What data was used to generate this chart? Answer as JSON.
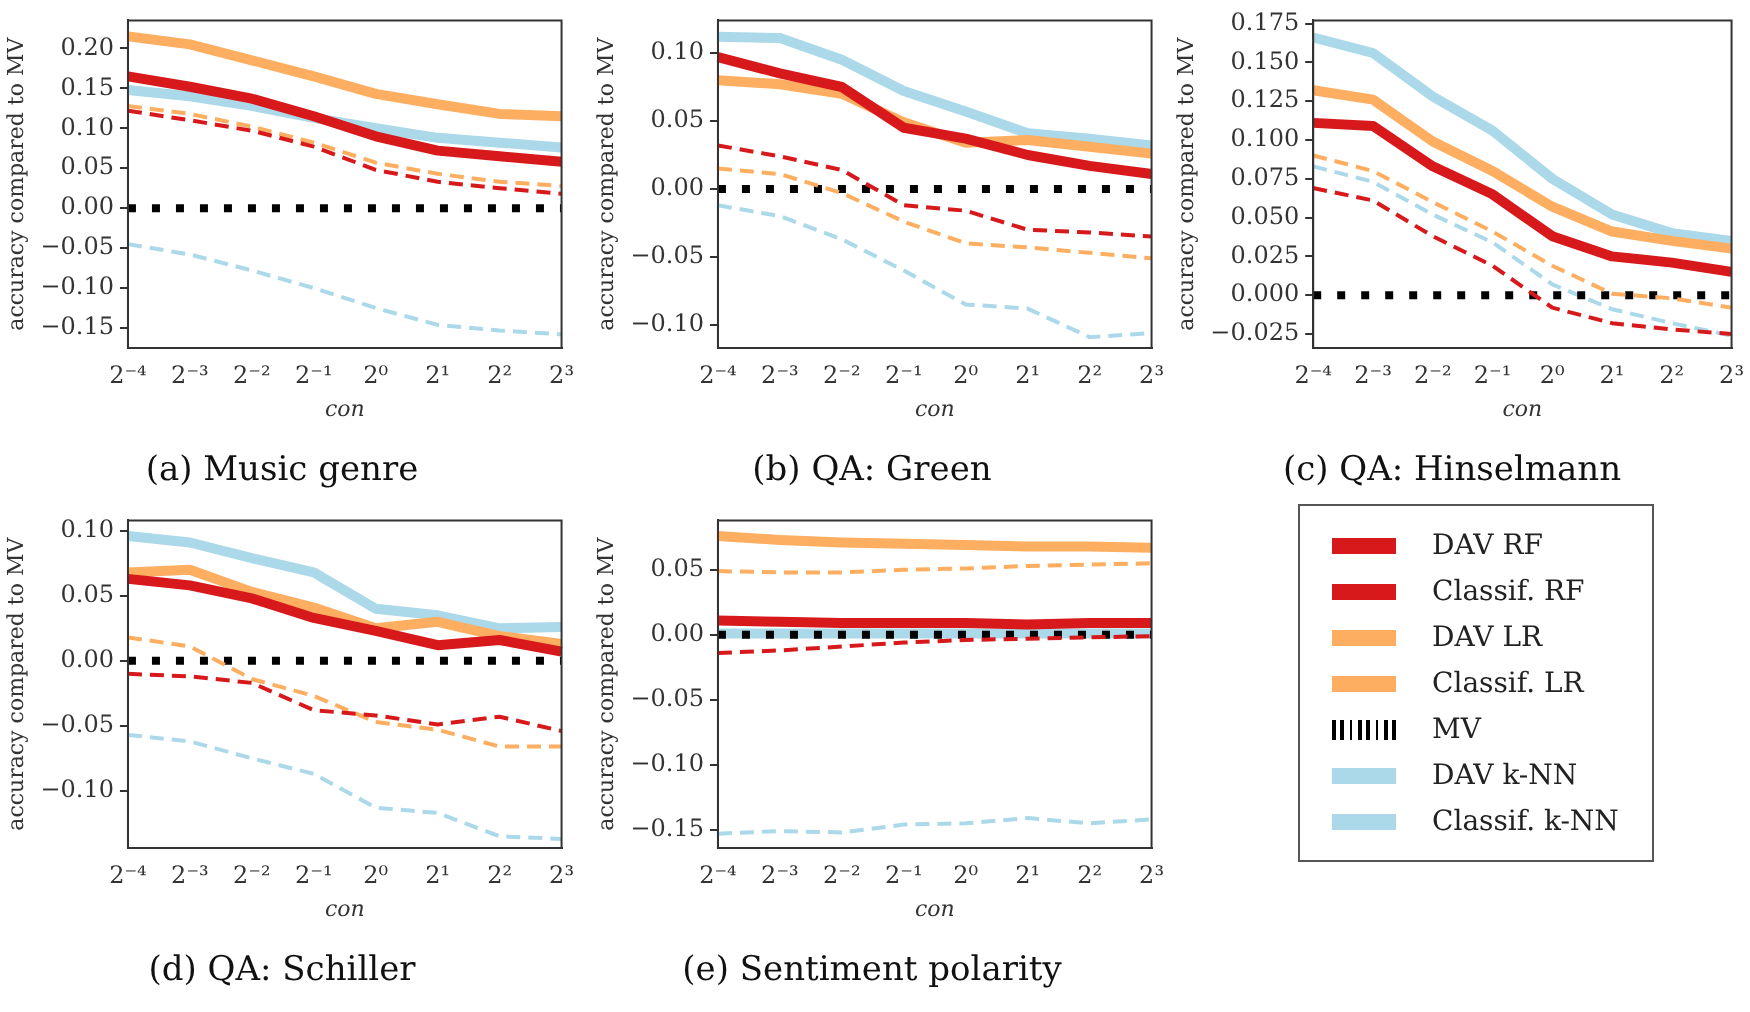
{
  "chart_data": [
    {
      "type": "line",
      "title": "(a) Music genre",
      "xlabel": "con",
      "ylabel": "accuracy compared to MV",
      "categories": [
        "2⁻⁴",
        "2⁻³",
        "2⁻²",
        "2⁻¹",
        "2⁰",
        "2¹",
        "2²",
        "2³"
      ],
      "ylim": [
        -0.175,
        0.235
      ],
      "yticks": [
        {
          "value": -0.15,
          "label": "−0.15"
        },
        {
          "value": -0.1,
          "label": "−0.10"
        },
        {
          "value": -0.05,
          "label": "−0.05"
        },
        {
          "value": 0,
          "label": "0.00"
        },
        {
          "value": 0.05,
          "label": "0.05"
        },
        {
          "value": 0.1,
          "label": "0.10"
        },
        {
          "value": 0.15,
          "label": "0.15"
        },
        {
          "value": 0.2,
          "label": "0.20"
        }
      ],
      "grid": false,
      "legend": false,
      "series": [
        {
          "color": "#d7191c",
          "line_style": "solid",
          "values": [
            0.165,
            0.152,
            0.137,
            0.115,
            0.09,
            0.072,
            0.065,
            0.058
          ]
        },
        {
          "color": "#d7191c",
          "line_style": "dashed",
          "values": [
            0.122,
            0.11,
            0.097,
            0.077,
            0.048,
            0.033,
            0.025,
            0.018
          ]
        },
        {
          "color": "#fdae61",
          "line_style": "solid",
          "values": [
            0.215,
            0.205,
            0.185,
            0.165,
            0.143,
            0.13,
            0.118,
            0.115
          ]
        },
        {
          "color": "#fdae61",
          "line_style": "dashed",
          "values": [
            0.128,
            0.118,
            0.102,
            0.082,
            0.057,
            0.043,
            0.033,
            0.028
          ]
        },
        {
          "color": "#000000",
          "line_style": "dotted",
          "values": [
            0,
            0,
            0,
            0,
            0,
            0,
            0,
            0
          ]
        },
        {
          "color": "#abd9e9",
          "line_style": "solid",
          "values": [
            0.148,
            0.14,
            0.128,
            0.113,
            0.1,
            0.088,
            0.082,
            0.076
          ]
        },
        {
          "color": "#abd9e9",
          "line_style": "dashed",
          "values": [
            -0.045,
            -0.058,
            -0.078,
            -0.1,
            -0.125,
            -0.146,
            -0.153,
            -0.158
          ]
        }
      ]
    },
    {
      "type": "line",
      "title": "(b) QA: Green",
      "xlabel": "con",
      "ylabel": "accuracy compared to MV",
      "categories": [
        "2⁻⁴",
        "2⁻³",
        "2⁻²",
        "2⁻¹",
        "2⁰",
        "2¹",
        "2²",
        "2³"
      ],
      "ylim": [
        -0.117,
        0.124
      ],
      "yticks": [
        {
          "value": -0.1,
          "label": "−0.10"
        },
        {
          "value": -0.05,
          "label": "−0.05"
        },
        {
          "value": 0,
          "label": "0.00"
        },
        {
          "value": 0.05,
          "label": "0.05"
        },
        {
          "value": 0.1,
          "label": "0.10"
        }
      ],
      "grid": false,
      "legend": false,
      "series": [
        {
          "color": "#d7191c",
          "line_style": "solid",
          "values": [
            0.097,
            0.085,
            0.075,
            0.045,
            0.037,
            0.025,
            0.017,
            0.011
          ]
        },
        {
          "color": "#d7191c",
          "line_style": "dashed",
          "values": [
            0.032,
            0.024,
            0.014,
            -0.012,
            -0.016,
            -0.03,
            -0.032,
            -0.035
          ]
        },
        {
          "color": "#fdae61",
          "line_style": "solid",
          "values": [
            0.08,
            0.077,
            0.07,
            0.049,
            0.034,
            0.036,
            0.031,
            0.026
          ]
        },
        {
          "color": "#fdae61",
          "line_style": "dashed",
          "values": [
            0.015,
            0.011,
            -0.003,
            -0.024,
            -0.04,
            -0.043,
            -0.047,
            -0.051
          ]
        },
        {
          "color": "#000000",
          "line_style": "dotted",
          "values": [
            0,
            0,
            0,
            0,
            0,
            0,
            0,
            0
          ]
        },
        {
          "color": "#abd9e9",
          "line_style": "solid",
          "values": [
            0.112,
            0.111,
            0.095,
            0.072,
            0.057,
            0.041,
            0.037,
            0.032
          ]
        },
        {
          "color": "#abd9e9",
          "line_style": "dashed",
          "values": [
            -0.012,
            -0.02,
            -0.037,
            -0.06,
            -0.085,
            -0.088,
            -0.109,
            -0.106
          ]
        }
      ]
    },
    {
      "type": "line",
      "title": "(c) QA: Hinselmann",
      "xlabel": "con",
      "ylabel": "accuracy compared to MV",
      "categories": [
        "2⁻⁴",
        "2⁻³",
        "2⁻²",
        "2⁻¹",
        "2⁰",
        "2¹",
        "2²",
        "2³"
      ],
      "ylim": [
        -0.034,
        0.177
      ],
      "yticks": [
        {
          "value": -0.025,
          "label": "−0.025"
        },
        {
          "value": 0,
          "label": "0.000"
        },
        {
          "value": 0.025,
          "label": "0.025"
        },
        {
          "value": 0.05,
          "label": "0.050"
        },
        {
          "value": 0.075,
          "label": "0.075"
        },
        {
          "value": 0.1,
          "label": "0.100"
        },
        {
          "value": 0.125,
          "label": "0.125"
        },
        {
          "value": 0.15,
          "label": "0.150"
        },
        {
          "value": 0.175,
          "label": "0.175"
        }
      ],
      "grid": false,
      "legend": false,
      "series": [
        {
          "color": "#d7191c",
          "line_style": "solid",
          "values": [
            0.111,
            0.109,
            0.083,
            0.065,
            0.038,
            0.025,
            0.021,
            0.015
          ]
        },
        {
          "color": "#d7191c",
          "line_style": "dashed",
          "values": [
            0.069,
            0.061,
            0.038,
            0.019,
            -0.008,
            -0.018,
            -0.022,
            -0.025
          ]
        },
        {
          "color": "#fdae61",
          "line_style": "solid",
          "values": [
            0.132,
            0.126,
            0.099,
            0.08,
            0.057,
            0.041,
            0.035,
            0.03
          ]
        },
        {
          "color": "#fdae61",
          "line_style": "dashed",
          "values": [
            0.09,
            0.08,
            0.06,
            0.041,
            0.019,
            0.001,
            -0.002,
            -0.008
          ]
        },
        {
          "color": "#000000",
          "line_style": "dotted",
          "values": [
            0,
            0,
            0,
            0,
            0,
            0,
            0,
            0
          ]
        },
        {
          "color": "#abd9e9",
          "line_style": "solid",
          "values": [
            0.166,
            0.156,
            0.128,
            0.106,
            0.075,
            0.052,
            0.04,
            0.035
          ]
        },
        {
          "color": "#abd9e9",
          "line_style": "dashed",
          "values": [
            0.083,
            0.073,
            0.052,
            0.034,
            0.007,
            -0.009,
            -0.018,
            -0.026
          ]
        }
      ]
    },
    {
      "type": "line",
      "title": "(d) QA: Schiller",
      "xlabel": "con",
      "ylabel": "accuracy compared to MV",
      "categories": [
        "2⁻⁴",
        "2⁻³",
        "2⁻²",
        "2⁻¹",
        "2⁰",
        "2¹",
        "2²",
        "2³"
      ],
      "ylim": [
        -0.144,
        0.108
      ],
      "yticks": [
        {
          "value": -0.1,
          "label": "−0.10"
        },
        {
          "value": -0.05,
          "label": "−0.05"
        },
        {
          "value": 0,
          "label": "0.00"
        },
        {
          "value": 0.05,
          "label": "0.05"
        },
        {
          "value": 0.1,
          "label": "0.10"
        }
      ],
      "grid": false,
      "legend": false,
      "series": [
        {
          "color": "#d7191c",
          "line_style": "solid",
          "values": [
            0.063,
            0.058,
            0.048,
            0.033,
            0.023,
            0.012,
            0.016,
            0.007
          ]
        },
        {
          "color": "#d7191c",
          "line_style": "dashed",
          "values": [
            -0.01,
            -0.012,
            -0.017,
            -0.038,
            -0.042,
            -0.049,
            -0.043,
            -0.054
          ]
        },
        {
          "color": "#fdae61",
          "line_style": "solid",
          "values": [
            0.068,
            0.07,
            0.053,
            0.041,
            0.025,
            0.03,
            0.019,
            0.013
          ]
        },
        {
          "color": "#fdae61",
          "line_style": "dashed",
          "values": [
            0.018,
            0.011,
            -0.014,
            -0.027,
            -0.047,
            -0.053,
            -0.066,
            -0.066
          ]
        },
        {
          "color": "#000000",
          "line_style": "dotted",
          "values": [
            0,
            0,
            0,
            0,
            0,
            0,
            0,
            0
          ]
        },
        {
          "color": "#abd9e9",
          "line_style": "solid",
          "values": [
            0.096,
            0.091,
            0.079,
            0.068,
            0.04,
            0.035,
            0.025,
            0.026
          ]
        },
        {
          "color": "#abd9e9",
          "line_style": "dashed",
          "values": [
            -0.057,
            -0.062,
            -0.075,
            -0.087,
            -0.113,
            -0.117,
            -0.135,
            -0.137
          ]
        }
      ]
    },
    {
      "type": "line",
      "title": "(e) Sentiment polarity",
      "xlabel": "con",
      "ylabel": "accuracy compared to MV",
      "categories": [
        "2⁻⁴",
        "2⁻³",
        "2⁻²",
        "2⁻¹",
        "2⁰",
        "2¹",
        "2²",
        "2³"
      ],
      "ylim": [
        -0.164,
        0.088
      ],
      "yticks": [
        {
          "value": -0.15,
          "label": "−0.15"
        },
        {
          "value": -0.1,
          "label": "−0.10"
        },
        {
          "value": -0.05,
          "label": "−0.05"
        },
        {
          "value": 0,
          "label": "0.00"
        },
        {
          "value": 0.05,
          "label": "0.05"
        }
      ],
      "grid": false,
      "legend": "right",
      "series": [
        {
          "name": "DAV RF",
          "color": "#d7191c",
          "line_style": "solid",
          "values": [
            0.011,
            0.01,
            0.009,
            0.009,
            0.009,
            0.008,
            0.009,
            0.009
          ]
        },
        {
          "name": "Classif. RF",
          "color": "#d7191c",
          "line_style": "dashed",
          "values": [
            -0.014,
            -0.012,
            -0.009,
            -0.006,
            -0.004,
            -0.003,
            -0.002,
            -0.001
          ]
        },
        {
          "name": "DAV LR",
          "color": "#fdae61",
          "line_style": "solid",
          "values": [
            0.076,
            0.073,
            0.071,
            0.07,
            0.069,
            0.068,
            0.068,
            0.067
          ]
        },
        {
          "name": "Classif. LR",
          "color": "#fdae61",
          "line_style": "dashed",
          "values": [
            0.049,
            0.048,
            0.048,
            0.05,
            0.051,
            0.053,
            0.054,
            0.055
          ]
        },
        {
          "name": "MV",
          "color": "#000000",
          "line_style": "dotted",
          "values": [
            0,
            0,
            0,
            0,
            0,
            0,
            0,
            0
          ]
        },
        {
          "name": "DAV k-NN",
          "color": "#abd9e9",
          "line_style": "solid",
          "values": [
            0.001,
            0.001,
            0.001,
            0.001,
            0.001,
            0.001,
            0.001,
            0.001
          ]
        },
        {
          "name": "Classif. k-NN",
          "color": "#abd9e9",
          "line_style": "dashed",
          "values": [
            -0.153,
            -0.151,
            -0.152,
            -0.146,
            -0.145,
            -0.141,
            -0.145,
            -0.142
          ]
        }
      ]
    }
  ]
}
